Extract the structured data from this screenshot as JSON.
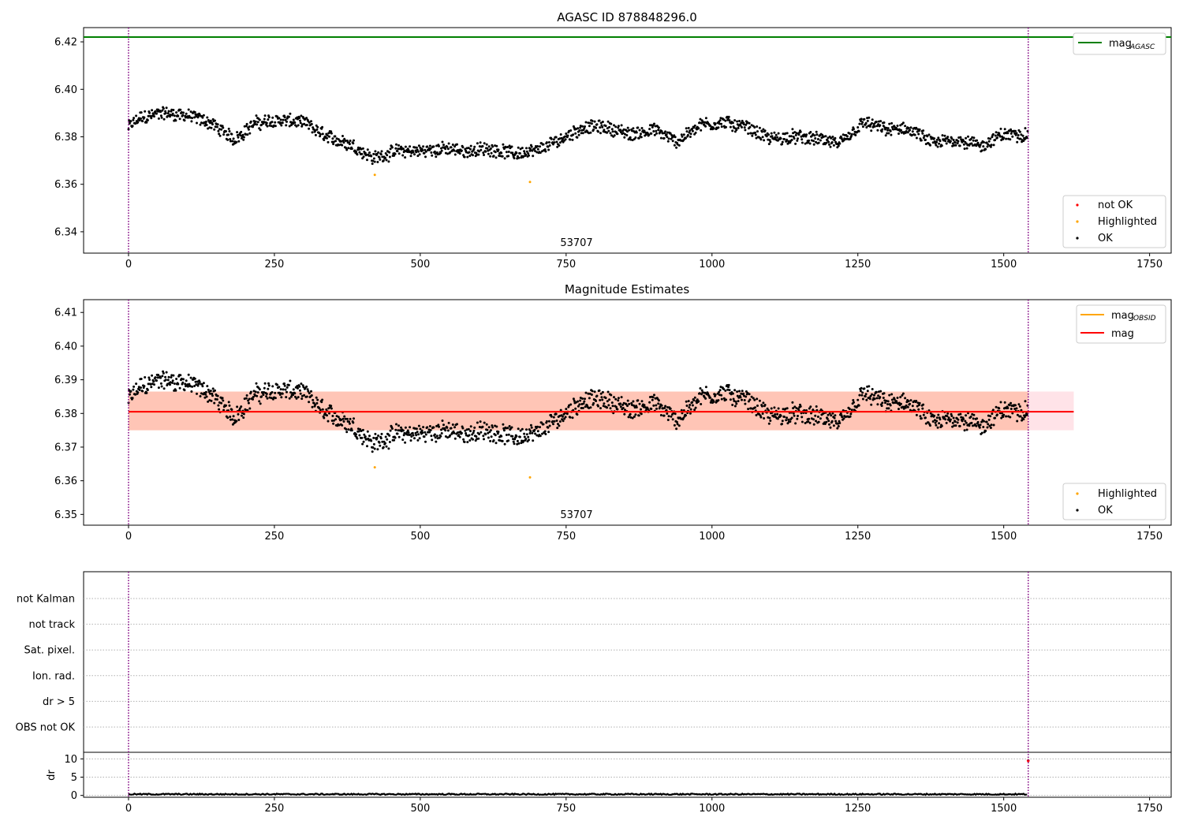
{
  "figure": {
    "title_top": "AGASC ID 878848296.0",
    "title_mid": "Magnitude Estimates",
    "obsid_label": "53707"
  },
  "chart_data": [
    {
      "type": "scatter",
      "name": "agasc-magnitude",
      "title": "AGASC ID 878848296.0",
      "xlim": [
        -77,
        1787
      ],
      "ylim": [
        6.331,
        6.426
      ],
      "xticks": [
        0,
        250,
        500,
        750,
        1000,
        1250,
        1500,
        1750
      ],
      "yticks": [
        6.34,
        6.36,
        6.38,
        6.4,
        6.42
      ],
      "mag_agasc": 6.422,
      "obs_boundaries": [
        0,
        1542
      ],
      "annotation": {
        "x": 769,
        "text": "53707"
      },
      "legend_lines": [
        {
          "label": "mag",
          "sub": "AGASC",
          "color": "#008000"
        }
      ],
      "legend_points": [
        {
          "label": "not OK",
          "color": "#ff0000"
        },
        {
          "label": "Highlighted",
          "color": "#ffa500"
        },
        {
          "label": "OK",
          "color": "#000000"
        }
      ],
      "highlighted": [
        {
          "x": 422,
          "y": 6.364
        },
        {
          "x": 688,
          "y": 6.361
        }
      ],
      "trend": {
        "x": [
          0,
          20,
          60,
          100,
          140,
          180,
          220,
          260,
          300,
          340,
          380,
          420,
          460,
          500,
          540,
          580,
          620,
          660,
          700,
          740,
          780,
          820,
          860,
          900,
          940,
          980,
          1020,
          1060,
          1100,
          1140,
          1180,
          1220,
          1260,
          1300,
          1340,
          1380,
          1420,
          1460,
          1500,
          1542
        ],
        "y": [
          6.384,
          6.388,
          6.39,
          6.389,
          6.386,
          6.379,
          6.386,
          6.387,
          6.386,
          6.38,
          6.377,
          6.371,
          6.374,
          6.374,
          6.375,
          6.374,
          6.375,
          6.373,
          6.374,
          6.379,
          6.384,
          6.384,
          6.381,
          6.383,
          6.378,
          6.385,
          6.386,
          6.384,
          6.379,
          6.38,
          6.379,
          6.377,
          6.386,
          6.383,
          6.383,
          6.377,
          6.379,
          6.376,
          6.381,
          6.381
        ]
      },
      "n_points": 1542,
      "scatter_amplitude": 0.0025
    },
    {
      "type": "scatter",
      "name": "magnitude-estimates",
      "title": "Magnitude Estimates",
      "xlim": [
        -77,
        1787
      ],
      "ylim": [
        6.3468,
        6.4138
      ],
      "xticks": [
        0,
        250,
        500,
        750,
        1000,
        1250,
        1500,
        1750
      ],
      "yticks": [
        6.35,
        6.36,
        6.37,
        6.38,
        6.39,
        6.4,
        6.41
      ],
      "mag": 6.3805,
      "band_mag": [
        6.375,
        6.3865
      ],
      "band_obsid": [
        6.375,
        6.3865
      ],
      "band_xlim": [
        0,
        1620
      ],
      "obsid_xlim": [
        0,
        1542
      ],
      "legend_lines": [
        {
          "label": "mag",
          "sub": "OBSID",
          "color": "#ffa500"
        },
        {
          "label": "mag",
          "sub": "",
          "color": "#ff0000"
        }
      ],
      "legend_points": [
        {
          "label": "Highlighted",
          "color": "#ffa500"
        },
        {
          "label": "OK",
          "color": "#000000"
        }
      ],
      "annotation": {
        "x": 769,
        "text": "53707"
      }
    },
    {
      "type": "scatter",
      "name": "flags",
      "xlim": [
        -77,
        1787
      ],
      "categories": [
        "not Kalman",
        "not track",
        "Sat. pixel.",
        "Ion. rad.",
        "dr > 5",
        "OBS not OK"
      ]
    },
    {
      "type": "scatter",
      "name": "dr",
      "ylabel": "dr",
      "xlim": [
        -77,
        1787
      ],
      "ylim": [
        -0.5,
        11.8
      ],
      "yticks": [
        0,
        5,
        10
      ],
      "xticks": [
        0,
        250,
        500,
        750,
        1000,
        1250,
        1500,
        1750
      ],
      "outlier": {
        "x": 1542,
        "y": 9.5
      }
    }
  ],
  "colors": {
    "ok": "#000000",
    "highlighted": "#ffa500",
    "not_ok": "#ff0000",
    "mag_agasc": "#008000",
    "mag": "#ff0000",
    "mag_obsid": "#ffa500",
    "boundary": "#800080",
    "band_mag": "#ffc0cb",
    "band_obsid": "#ffa07a"
  }
}
